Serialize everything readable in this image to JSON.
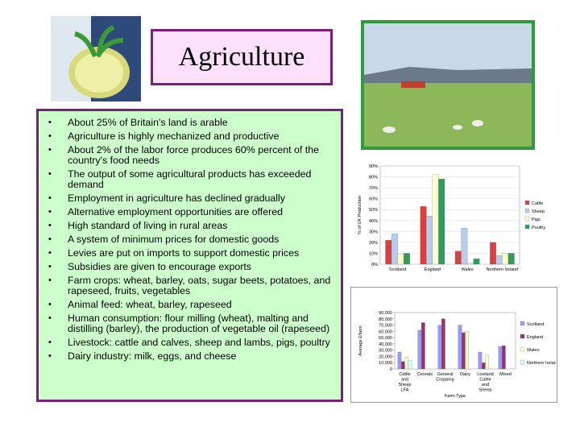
{
  "title": "Agriculture",
  "bullets": [
    "About 25% of Britain's land is arable",
    "Agriculture is highly mechanized and productive",
    "About 2% of the labor force produces 60% percent of the country's food needs",
    "The output of some agricultural products has exceeded demand",
    "Employment in agriculture has declined gradually",
    "Alternative employment opportunities are offered",
    "High standard of living in rural areas",
    "A system of minimum prices for domestic goods",
    "Levies are put on imports to support domestic prices",
    "Subsidies are given to encourage exports",
    "Farm crops: wheat, barley, oats, sugar beets, potatoes, and rapeseed, fruits, vegetables",
    "Animal feed: wheat, barley, rapeseed",
    "Human consumption: flour milling (wheat), malting and distilling (barley), the production of vegetable oil (rapeseed)",
    "Livestock: cattle and calves, sheep and lambs, pigs, poultry",
    "Dairy industry: milk, eggs, and cheese"
  ],
  "chart_data": [
    {
      "type": "bar",
      "y_label": "% of UK Production",
      "categories": [
        "Scotland",
        "England",
        "Wales",
        "Northern Ireland"
      ],
      "series": [
        {
          "name": "Cattle",
          "color": "#d94040",
          "values": [
            22,
            53,
            12,
            20
          ]
        },
        {
          "name": "Sheep",
          "color": "#b7cdf0",
          "values": [
            28,
            44,
            33,
            8
          ]
        },
        {
          "name": "Pigs",
          "color": "#ffffcc",
          "values": [
            9,
            82,
            1,
            10
          ]
        },
        {
          "name": "Poultry",
          "color": "#2e9e5e",
          "values": [
            10,
            78,
            5,
            10
          ]
        }
      ],
      "ylim": [
        0,
        90
      ],
      "yticks": [
        {
          "value": 0,
          "label": "0%"
        },
        {
          "value": 10,
          "label": "10%"
        },
        {
          "value": 20,
          "label": "20%"
        },
        {
          "value": 30,
          "label": "30%"
        },
        {
          "value": 40,
          "label": "40%"
        },
        {
          "value": 50,
          "label": "50%"
        },
        {
          "value": 60,
          "label": "60%"
        },
        {
          "value": 70,
          "label": "70%"
        },
        {
          "value": 80,
          "label": "80%"
        },
        {
          "value": 90,
          "label": "90%"
        }
      ],
      "grid": true
    },
    {
      "type": "bar",
      "y_label": "Average £/farm",
      "x_label": "Farm Type",
      "categories": [
        "Cattle and Sheep LFA",
        "Cereals",
        "General Cropping",
        "Dairy",
        "Lowland Cattle and Sheep",
        "Mixed"
      ],
      "series": [
        {
          "name": "Scotland",
          "color": "#9999ff",
          "values": [
            27000,
            62000,
            70000,
            70000,
            27000,
            36000
          ]
        },
        {
          "name": "England",
          "color": "#993366",
          "values": [
            12000,
            74000,
            80000,
            58000,
            10000,
            37000
          ]
        },
        {
          "name": "Wales",
          "color": "#ffffcc",
          "values": [
            19000,
            null,
            null,
            60000,
            22000,
            null
          ]
        },
        {
          "name": "Northern Ireland",
          "color": "#ccffff",
          "values": [
            14000,
            null,
            null,
            null,
            null,
            null
          ]
        }
      ],
      "ylim": [
        0,
        90000
      ],
      "yticks": [
        {
          "value": 0,
          "label": "0"
        },
        {
          "value": 10000,
          "label": "10,000"
        },
        {
          "value": 20000,
          "label": "20,000"
        },
        {
          "value": 30000,
          "label": "30,000"
        },
        {
          "value": 40000,
          "label": "40,000"
        },
        {
          "value": 50000,
          "label": "50,000"
        },
        {
          "value": 60000,
          "label": "60,000"
        },
        {
          "value": 70000,
          "label": "70,000"
        },
        {
          "value": 80000,
          "label": "80,000"
        },
        {
          "value": 90000,
          "label": "90,000"
        }
      ],
      "grid": false
    }
  ]
}
